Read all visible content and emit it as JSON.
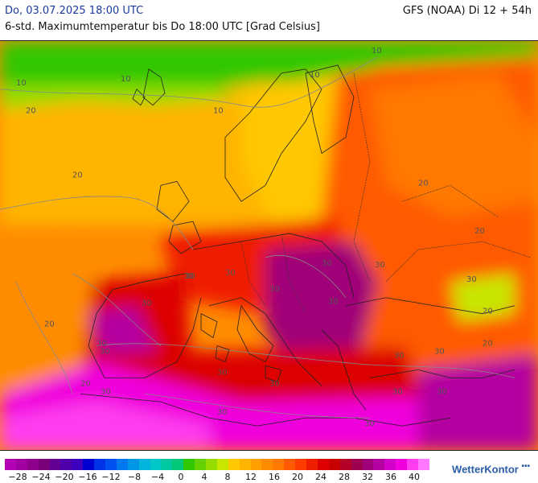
{
  "header": {
    "date": "Do, 03.07.2025 18:00 UTC",
    "model": "GFS (NOAA) Di 12 + 54h",
    "subtitle": "6-std. Maximumtemperatur bis Do 18:00 UTC [Grad Celsius]"
  },
  "map": {
    "contour_labels": [
      "10",
      "10",
      "10",
      "10",
      "10",
      "20",
      "20",
      "20",
      "20",
      "20",
      "20",
      "20",
      "20",
      "30",
      "30",
      "30",
      "30",
      "30",
      "30",
      "30",
      "30",
      "30",
      "30",
      "30",
      "30",
      "30",
      "30",
      "30",
      "30",
      "30",
      "30",
      "30",
      "30"
    ]
  },
  "legend": {
    "colors": [
      "#b400b4",
      "#a000a0",
      "#8c008c",
      "#780078",
      "#640096",
      "#5000aa",
      "#3c00be",
      "#0000d2",
      "#0032e6",
      "#0050f0",
      "#0078f0",
      "#0096e6",
      "#00b4dc",
      "#00c8c8",
      "#00c8a0",
      "#00c878",
      "#32c800",
      "#64d200",
      "#96dc00",
      "#c8e600",
      "#ffc800",
      "#ffb400",
      "#ffa000",
      "#ff8c00",
      "#ff7800",
      "#ff5a00",
      "#ff3c00",
      "#f01e00",
      "#dc0000",
      "#c80000",
      "#b40028",
      "#a00050",
      "#a00078",
      "#b400a0",
      "#d200c8",
      "#f000dc",
      "#ff3cf0",
      "#ff78ff"
    ],
    "ticks": [
      "−28",
      "−24",
      "−20",
      "−16",
      "−12",
      "−8",
      "−4",
      "0",
      "4",
      "8",
      "12",
      "16",
      "20",
      "24",
      "28",
      "32",
      "36",
      "40"
    ]
  },
  "brand": {
    "name": "WetterKontor"
  }
}
